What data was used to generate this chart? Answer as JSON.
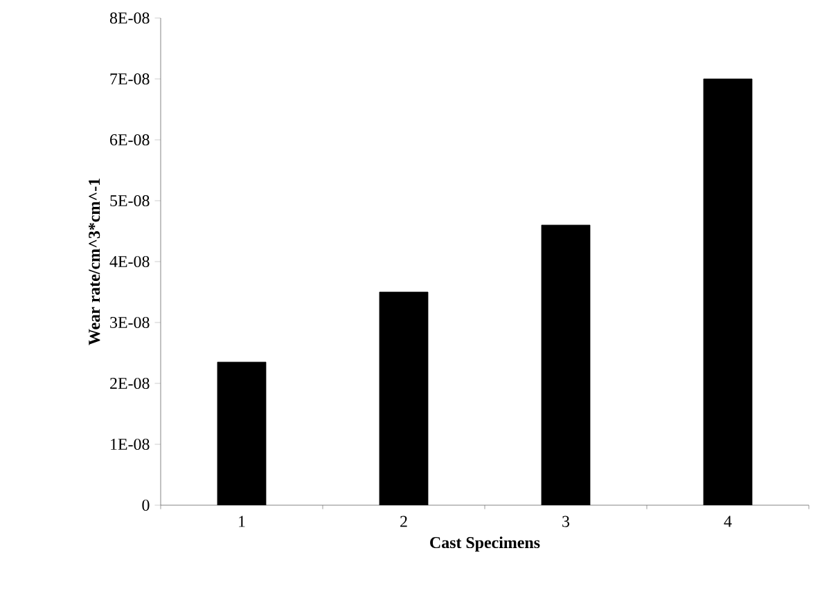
{
  "chart_data": {
    "type": "bar",
    "xlabel": "Cast Specimens",
    "ylabel": "Wear rate/cm^3*cm^-1",
    "categories": [
      "1",
      "2",
      "3",
      "4"
    ],
    "values": [
      2.35e-08,
      3.5e-08,
      4.6e-08,
      7e-08
    ],
    "color": "#000000",
    "ylim": [
      0,
      8e-08
    ],
    "yticks": [
      0,
      {
        "value": 1e-08,
        "label": "1E-08"
      },
      {
        "value": 2e-08,
        "label": "2E-08"
      },
      {
        "value": 3e-08,
        "label": "3E-08"
      },
      {
        "value": 4e-08,
        "label": "4E-08"
      },
      {
        "value": 5e-08,
        "label": "5E-08"
      },
      {
        "value": 6e-08,
        "label": "6E-08"
      },
      {
        "value": 7e-08,
        "label": "7E-08"
      },
      {
        "value": 8e-08,
        "label": "8E-08"
      }
    ],
    "grid": false
  }
}
